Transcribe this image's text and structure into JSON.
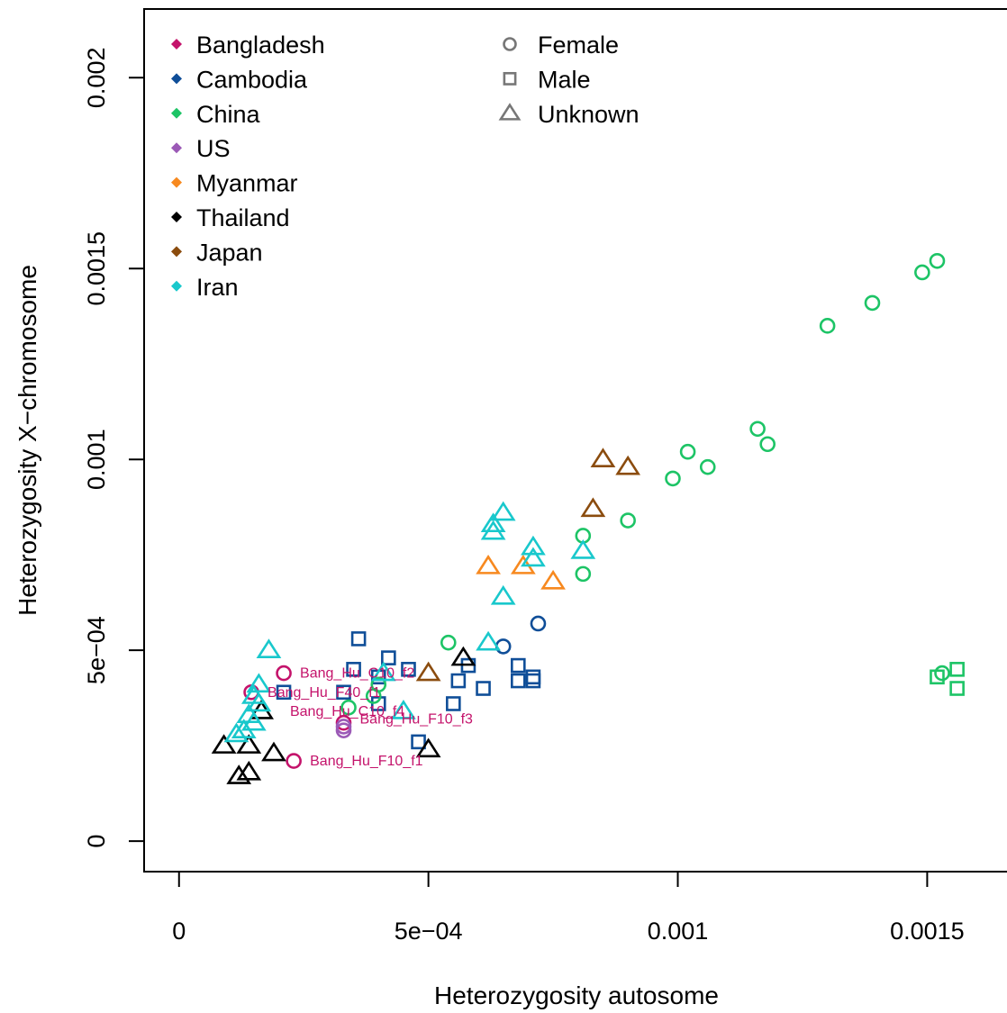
{
  "chart_data": {
    "type": "scatter",
    "title": "",
    "xlabel": "Heterozygosity autosome",
    "ylabel": "Heterozygosity X−chromosome",
    "xlim": [
      -7e-05,
      0.00166
    ],
    "ylim": [
      -8e-05,
      0.00218
    ],
    "x_ticks": [
      {
        "value": 0,
        "label": "0"
      },
      {
        "value": 0.0005,
        "label": "5e−04"
      },
      {
        "value": 0.001,
        "label": "0.001"
      },
      {
        "value": 0.0015,
        "label": "0.0015"
      }
    ],
    "y_ticks": [
      {
        "value": 0,
        "label": "0"
      },
      {
        "value": 0.0005,
        "label": "5e−04"
      },
      {
        "value": 0.001,
        "label": "0.001"
      },
      {
        "value": 0.0015,
        "label": "0.0015"
      },
      {
        "value": 0.002,
        "label": "0.002"
      }
    ],
    "grid": false,
    "legend_placement": "top-left",
    "country_legend": [
      {
        "name": "Bangladesh",
        "color": "#C4136B"
      },
      {
        "name": "Cambodia",
        "color": "#0F4E98"
      },
      {
        "name": "China",
        "color": "#1DC466"
      },
      {
        "name": "US",
        "color": "#9B59B6"
      },
      {
        "name": "Myanmar",
        "color": "#F7891F"
      },
      {
        "name": "Thailand",
        "color": "#000000"
      },
      {
        "name": "Japan",
        "color": "#8B4C0E"
      },
      {
        "name": "Iran",
        "color": "#19C8CC"
      }
    ],
    "sex_legend": [
      {
        "name": "Female",
        "shape": "circle"
      },
      {
        "name": "Male",
        "shape": "square"
      },
      {
        "name": "Unknown",
        "shape": "triangle"
      }
    ],
    "legend_marker_color": "#777777",
    "series": [
      {
        "name": "Bangladesh",
        "color": "#C4136B",
        "points": [
          {
            "x": 0.00021,
            "y": 0.00044,
            "shape": "circle"
          },
          {
            "x": 0.000145,
            "y": 0.00039,
            "shape": "circle"
          },
          {
            "x": 0.00023,
            "y": 0.00021,
            "shape": "circle"
          },
          {
            "x": 0.00033,
            "y": 0.00031,
            "shape": "circle"
          }
        ]
      },
      {
        "name": "Cambodia",
        "color": "#0F4E98",
        "points": [
          {
            "x": 0.00072,
            "y": 0.00057,
            "shape": "circle"
          },
          {
            "x": 0.00065,
            "y": 0.00051,
            "shape": "circle"
          },
          {
            "x": 0.00036,
            "y": 0.00053,
            "shape": "square"
          },
          {
            "x": 0.00035,
            "y": 0.00045,
            "shape": "square"
          },
          {
            "x": 0.00021,
            "y": 0.00039,
            "shape": "square"
          },
          {
            "x": 0.00033,
            "y": 0.00039,
            "shape": "square"
          },
          {
            "x": 0.0004,
            "y": 0.00043,
            "shape": "square"
          },
          {
            "x": 0.00042,
            "y": 0.00048,
            "shape": "square"
          },
          {
            "x": 0.00046,
            "y": 0.00045,
            "shape": "square"
          },
          {
            "x": 0.0004,
            "y": 0.00036,
            "shape": "square"
          },
          {
            "x": 0.00048,
            "y": 0.00026,
            "shape": "square"
          },
          {
            "x": 0.00055,
            "y": 0.00036,
            "shape": "square"
          },
          {
            "x": 0.00056,
            "y": 0.00042,
            "shape": "square"
          },
          {
            "x": 0.00058,
            "y": 0.00046,
            "shape": "square"
          },
          {
            "x": 0.00061,
            "y": 0.0004,
            "shape": "square"
          },
          {
            "x": 0.00068,
            "y": 0.00046,
            "shape": "square"
          },
          {
            "x": 0.00068,
            "y": 0.00042,
            "shape": "square"
          },
          {
            "x": 0.00071,
            "y": 0.00043,
            "shape": "square"
          },
          {
            "x": 0.00071,
            "y": 0.00042,
            "shape": "square"
          }
        ]
      },
      {
        "name": "China",
        "color": "#1DC466",
        "points": [
          {
            "x": 0.00152,
            "y": 0.00152,
            "shape": "circle"
          },
          {
            "x": 0.00149,
            "y": 0.00149,
            "shape": "circle"
          },
          {
            "x": 0.00139,
            "y": 0.00141,
            "shape": "circle"
          },
          {
            "x": 0.0013,
            "y": 0.00135,
            "shape": "circle"
          },
          {
            "x": 0.00116,
            "y": 0.00108,
            "shape": "circle"
          },
          {
            "x": 0.00118,
            "y": 0.00104,
            "shape": "circle"
          },
          {
            "x": 0.00102,
            "y": 0.00102,
            "shape": "circle"
          },
          {
            "x": 0.00106,
            "y": 0.00098,
            "shape": "circle"
          },
          {
            "x": 0.00099,
            "y": 0.00095,
            "shape": "circle"
          },
          {
            "x": 0.0009,
            "y": 0.00084,
            "shape": "circle"
          },
          {
            "x": 0.00081,
            "y": 0.0008,
            "shape": "circle"
          },
          {
            "x": 0.00081,
            "y": 0.0007,
            "shape": "circle"
          },
          {
            "x": 0.00054,
            "y": 0.00052,
            "shape": "circle"
          },
          {
            "x": 0.00039,
            "y": 0.00038,
            "shape": "circle"
          },
          {
            "x": 0.00034,
            "y": 0.00035,
            "shape": "circle"
          },
          {
            "x": 0.0004,
            "y": 0.00041,
            "shape": "circle"
          },
          {
            "x": 0.00153,
            "y": 0.00044,
            "shape": "circle"
          },
          {
            "x": 0.00156,
            "y": 0.00045,
            "shape": "square"
          },
          {
            "x": 0.00156,
            "y": 0.0004,
            "shape": "square"
          },
          {
            "x": 0.00152,
            "y": 0.00043,
            "shape": "square"
          }
        ]
      },
      {
        "name": "US",
        "color": "#9B59B6",
        "points": [
          {
            "x": 0.00033,
            "y": 0.0003,
            "shape": "circle"
          },
          {
            "x": 0.00033,
            "y": 0.00029,
            "shape": "circle"
          }
        ]
      },
      {
        "name": "Myanmar",
        "color": "#F7891F",
        "points": [
          {
            "x": 0.00062,
            "y": 0.00072,
            "shape": "triangle"
          },
          {
            "x": 0.00069,
            "y": 0.00072,
            "shape": "triangle"
          },
          {
            "x": 0.00075,
            "y": 0.00068,
            "shape": "triangle"
          }
        ]
      },
      {
        "name": "Thailand",
        "color": "#000000",
        "points": [
          {
            "x": 0.00057,
            "y": 0.00048,
            "shape": "triangle"
          },
          {
            "x": 0.0005,
            "y": 0.00024,
            "shape": "triangle"
          },
          {
            "x": 9e-05,
            "y": 0.00025,
            "shape": "triangle"
          },
          {
            "x": 0.00014,
            "y": 0.00025,
            "shape": "triangle"
          },
          {
            "x": 0.00019,
            "y": 0.00023,
            "shape": "triangle"
          },
          {
            "x": 0.00012,
            "y": 0.00017,
            "shape": "triangle"
          },
          {
            "x": 0.00014,
            "y": 0.00018,
            "shape": "triangle"
          },
          {
            "x": 0.000165,
            "y": 0.00034,
            "shape": "triangle"
          }
        ]
      },
      {
        "name": "Japan",
        "color": "#8B4C0E",
        "points": [
          {
            "x": 0.00085,
            "y": 0.001,
            "shape": "triangle"
          },
          {
            "x": 0.0009,
            "y": 0.00098,
            "shape": "triangle"
          },
          {
            "x": 0.00083,
            "y": 0.00087,
            "shape": "triangle"
          },
          {
            "x": 0.0005,
            "y": 0.00044,
            "shape": "triangle"
          }
        ]
      },
      {
        "name": "Iran",
        "color": "#19C8CC",
        "points": [
          {
            "x": 0.00065,
            "y": 0.00086,
            "shape": "triangle"
          },
          {
            "x": 0.00063,
            "y": 0.00083,
            "shape": "triangle"
          },
          {
            "x": 0.00063,
            "y": 0.00081,
            "shape": "triangle"
          },
          {
            "x": 0.00071,
            "y": 0.00077,
            "shape": "triangle"
          },
          {
            "x": 0.00071,
            "y": 0.00074,
            "shape": "triangle"
          },
          {
            "x": 0.00081,
            "y": 0.00076,
            "shape": "triangle"
          },
          {
            "x": 0.00065,
            "y": 0.00064,
            "shape": "triangle"
          },
          {
            "x": 0.00062,
            "y": 0.00052,
            "shape": "triangle"
          },
          {
            "x": 0.00018,
            "y": 0.0005,
            "shape": "triangle"
          },
          {
            "x": 0.00016,
            "y": 0.00041,
            "shape": "triangle"
          },
          {
            "x": 0.00015,
            "y": 0.00038,
            "shape": "triangle"
          },
          {
            "x": 0.00016,
            "y": 0.00036,
            "shape": "triangle"
          },
          {
            "x": 0.00014,
            "y": 0.00033,
            "shape": "triangle"
          },
          {
            "x": 0.00015,
            "y": 0.00031,
            "shape": "triangle"
          },
          {
            "x": 0.00013,
            "y": 0.00029,
            "shape": "triangle"
          },
          {
            "x": 0.000115,
            "y": 0.00028,
            "shape": "triangle"
          },
          {
            "x": 0.00041,
            "y": 0.00044,
            "shape": "triangle"
          },
          {
            "x": 0.00045,
            "y": 0.00034,
            "shape": "triangle"
          }
        ]
      }
    ],
    "annotations": [
      {
        "text": "Bang_Hu_C10_f2",
        "x": 0.00021,
        "y": 0.00044,
        "color": "#C4136B"
      },
      {
        "text": "Bang_Hu_F40_f1",
        "x": 0.000145,
        "y": 0.00039,
        "color": "#C4136B"
      },
      {
        "text": "Bang_Hu_C10_f4",
        "x": 0.00019,
        "y": 0.00034,
        "color": "#C4136B"
      },
      {
        "text": "Bang_Hu_F10_f3",
        "x": 0.00033,
        "y": 0.00032,
        "color": "#C4136B"
      },
      {
        "text": "Bang_Hu_F10_f1",
        "x": 0.00023,
        "y": 0.00021,
        "color": "#C4136B"
      }
    ]
  }
}
